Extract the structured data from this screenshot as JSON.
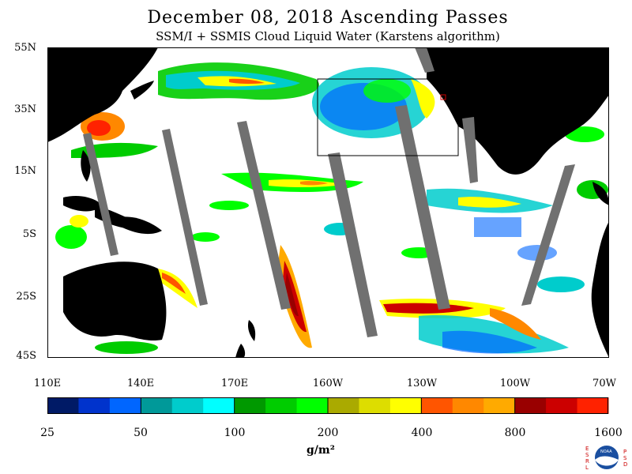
{
  "header": {
    "title": "December 08, 2018  Ascending Passes",
    "subtitle": "SSM/I + SSMIS Cloud Liquid Water (Karstens algorithm)"
  },
  "axes": {
    "lat_labels": [
      "55N",
      "35N",
      "15N",
      "5S",
      "25S",
      "45S"
    ],
    "lon_labels": [
      "110E",
      "140E",
      "170E",
      "160W",
      "130W",
      "100W",
      "70W"
    ]
  },
  "colorbar": {
    "tick_labels": [
      "25",
      "50",
      "100",
      "200",
      "400",
      "800",
      "1600"
    ],
    "units": "g/m²",
    "colors": [
      "#001a66",
      "#0033cc",
      "#0066ff",
      "#009999",
      "#00cccc",
      "#00ffff",
      "#009900",
      "#00cc00",
      "#00ff00",
      "#aaaa00",
      "#dddd00",
      "#ffff00",
      "#ff5500",
      "#ff8800",
      "#ffaa00",
      "#990000",
      "#cc0000",
      "#ff2200"
    ]
  },
  "logo": {
    "name": "noaa-logo",
    "left_text": "ESRL",
    "right_text": "PSD"
  }
}
